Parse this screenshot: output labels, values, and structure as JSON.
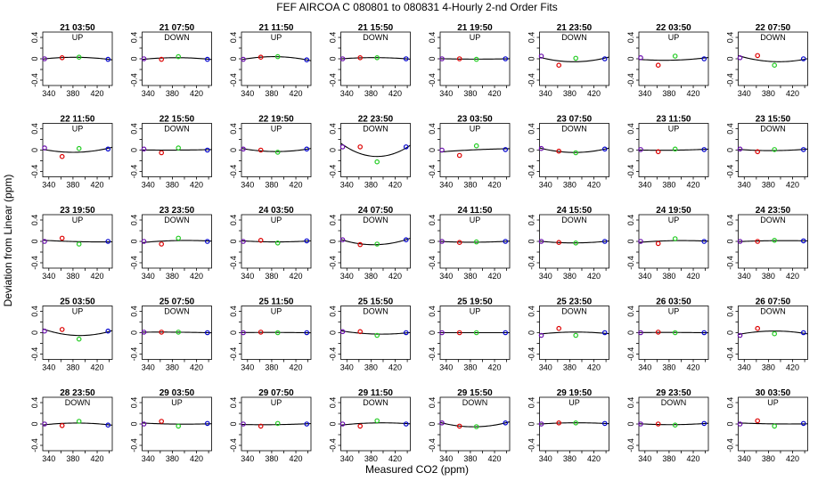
{
  "figure": {
    "title": "FEF   AIRCOA C   080801 to 080831   4-Hourly 2-nd Order Fits",
    "xlabel": "Measured CO2 (ppm)",
    "ylabel": "Deviation from Linear (ppm)"
  },
  "colors": {
    "curve": "#000000",
    "point_low": "#6a0dad",
    "point_mid1": "#dd0000",
    "point_mid2": "#22cc22",
    "point_high": "#0000cc",
    "frame": "#000000"
  },
  "chart_data": {
    "type": "scatter",
    "layout": {
      "rows": 5,
      "cols": 8
    },
    "xlim": [
      330,
      445
    ],
    "ylim": [
      -0.5,
      0.5
    ],
    "xticks": [
      340,
      380,
      420
    ],
    "xtick_labels": [
      "340",
      "380",
      "420"
    ],
    "xticks_minor": [
      360,
      400,
      440
    ],
    "xtick_labels_minor": [
      "360",
      "400",
      "440"
    ],
    "yticks": [
      -0.4,
      0,
      0.4
    ],
    "ytick_labels": [
      "-0.4",
      "0",
      "0.4"
    ],
    "yticks_minor": [
      -0.2,
      0.2
    ],
    "ytick_labels_minor": [
      "-0.2",
      "0.2"
    ],
    "standard_x": [
      333,
      362,
      390,
      438
    ],
    "point_colors": [
      "point_low",
      "point_mid1",
      "point_mid2",
      "point_high"
    ],
    "panels": [
      {
        "title": "21 03:50",
        "dir": "UP",
        "y": [
          0.0,
          0.02,
          0.03,
          -0.01
        ]
      },
      {
        "title": "21 07:50",
        "dir": "DOWN",
        "y": [
          0.0,
          -0.01,
          0.04,
          -0.01
        ]
      },
      {
        "title": "21 11:50",
        "dir": "UP",
        "y": [
          -0.01,
          0.03,
          0.04,
          -0.02
        ]
      },
      {
        "title": "21 15:50",
        "dir": "DOWN",
        "y": [
          0.0,
          0.02,
          0.02,
          0.0
        ]
      },
      {
        "title": "21 19:50",
        "dir": "UP",
        "y": [
          0.0,
          0.0,
          -0.01,
          0.0
        ]
      },
      {
        "title": "21 23:50",
        "dir": "DOWN",
        "y": [
          0.05,
          -0.12,
          0.01,
          0.0
        ]
      },
      {
        "title": "22 03:50",
        "dir": "UP",
        "y": [
          0.02,
          -0.12,
          0.05,
          0.0
        ]
      },
      {
        "title": "22 07:50",
        "dir": "DOWN",
        "y": [
          0.02,
          0.06,
          -0.12,
          0.0
        ]
      },
      {
        "title": "22 11:50",
        "dir": "UP",
        "y": [
          0.04,
          -0.12,
          0.03,
          0.02
        ]
      },
      {
        "title": "22 15:50",
        "dir": "DOWN",
        "y": [
          0.02,
          -0.05,
          0.04,
          0.0
        ]
      },
      {
        "title": "22 19:50",
        "dir": "UP",
        "y": [
          0.02,
          0.0,
          -0.04,
          0.02
        ]
      },
      {
        "title": "22 23:50",
        "dir": "DOWN",
        "y": [
          0.06,
          0.06,
          -0.22,
          0.06
        ]
      },
      {
        "title": "23 03:50",
        "dir": "UP",
        "y": [
          0.0,
          -0.1,
          0.08,
          0.01
        ]
      },
      {
        "title": "23 07:50",
        "dir": "DOWN",
        "y": [
          0.03,
          -0.02,
          -0.05,
          0.02
        ]
      },
      {
        "title": "23 11:50",
        "dir": "UP",
        "y": [
          0.01,
          -0.03,
          0.02,
          0.01
        ]
      },
      {
        "title": "23 15:50",
        "dir": "DOWN",
        "y": [
          0.02,
          -0.03,
          0.01,
          0.01
        ]
      },
      {
        "title": "23 19:50",
        "dir": "UP",
        "y": [
          0.0,
          0.06,
          -0.05,
          0.0
        ]
      },
      {
        "title": "23 23:50",
        "dir": "DOWN",
        "y": [
          0.0,
          -0.05,
          0.06,
          0.0
        ]
      },
      {
        "title": "24 03:50",
        "dir": "UP",
        "y": [
          0.0,
          0.02,
          -0.03,
          0.01
        ]
      },
      {
        "title": "24 07:50",
        "dir": "DOWN",
        "y": [
          0.03,
          -0.06,
          -0.05,
          0.03
        ]
      },
      {
        "title": "24 11:50",
        "dir": "UP",
        "y": [
          0.0,
          -0.02,
          -0.01,
          0.0
        ]
      },
      {
        "title": "24 15:50",
        "dir": "DOWN",
        "y": [
          0.0,
          -0.02,
          -0.03,
          0.0
        ]
      },
      {
        "title": "24 19:50",
        "dir": "UP",
        "y": [
          0.0,
          -0.04,
          0.05,
          0.0
        ]
      },
      {
        "title": "24 23:50",
        "dir": "DOWN",
        "y": [
          0.0,
          0.0,
          0.02,
          0.01
        ]
      },
      {
        "title": "25 03:50",
        "dir": "UP",
        "y": [
          0.03,
          0.06,
          -0.12,
          0.03
        ]
      },
      {
        "title": "25 07:50",
        "dir": "DOWN",
        "y": [
          0.01,
          0.01,
          0.01,
          0.0
        ]
      },
      {
        "title": "25 11:50",
        "dir": "UP",
        "y": [
          0.0,
          0.01,
          0.0,
          0.0
        ]
      },
      {
        "title": "25 15:50",
        "dir": "DOWN",
        "y": [
          0.02,
          0.02,
          -0.05,
          0.0
        ]
      },
      {
        "title": "25 19:50",
        "dir": "UP",
        "y": [
          0.0,
          0.0,
          0.0,
          0.0
        ]
      },
      {
        "title": "25 23:50",
        "dir": "DOWN",
        "y": [
          -0.05,
          0.08,
          -0.05,
          0.0
        ]
      },
      {
        "title": "26 03:50",
        "dir": "UP",
        "y": [
          0.0,
          0.01,
          0.0,
          0.0
        ]
      },
      {
        "title": "26 07:50",
        "dir": "DOWN",
        "y": [
          -0.05,
          0.08,
          -0.02,
          0.0
        ]
      },
      {
        "title": "28 23:50",
        "dir": "DOWN",
        "y": [
          0.0,
          -0.03,
          0.05,
          -0.02
        ]
      },
      {
        "title": "29 03:50",
        "dir": "UP",
        "y": [
          0.0,
          0.05,
          -0.04,
          0.01
        ]
      },
      {
        "title": "29 07:50",
        "dir": "UP",
        "y": [
          0.0,
          -0.04,
          0.01,
          0.0
        ]
      },
      {
        "title": "29 11:50",
        "dir": "DOWN",
        "y": [
          0.0,
          -0.04,
          0.06,
          0.0
        ]
      },
      {
        "title": "29 15:50",
        "dir": "DOWN",
        "y": [
          0.02,
          -0.04,
          -0.05,
          0.02
        ]
      },
      {
        "title": "29 19:50",
        "dir": "UP",
        "y": [
          0.0,
          0.02,
          0.02,
          0.01
        ]
      },
      {
        "title": "29 23:50",
        "dir": "DOWN",
        "y": [
          0.0,
          0.0,
          -0.02,
          0.01
        ]
      },
      {
        "title": "30 03:50",
        "dir": "UP",
        "y": [
          0.0,
          0.06,
          -0.04,
          0.01
        ]
      }
    ]
  }
}
